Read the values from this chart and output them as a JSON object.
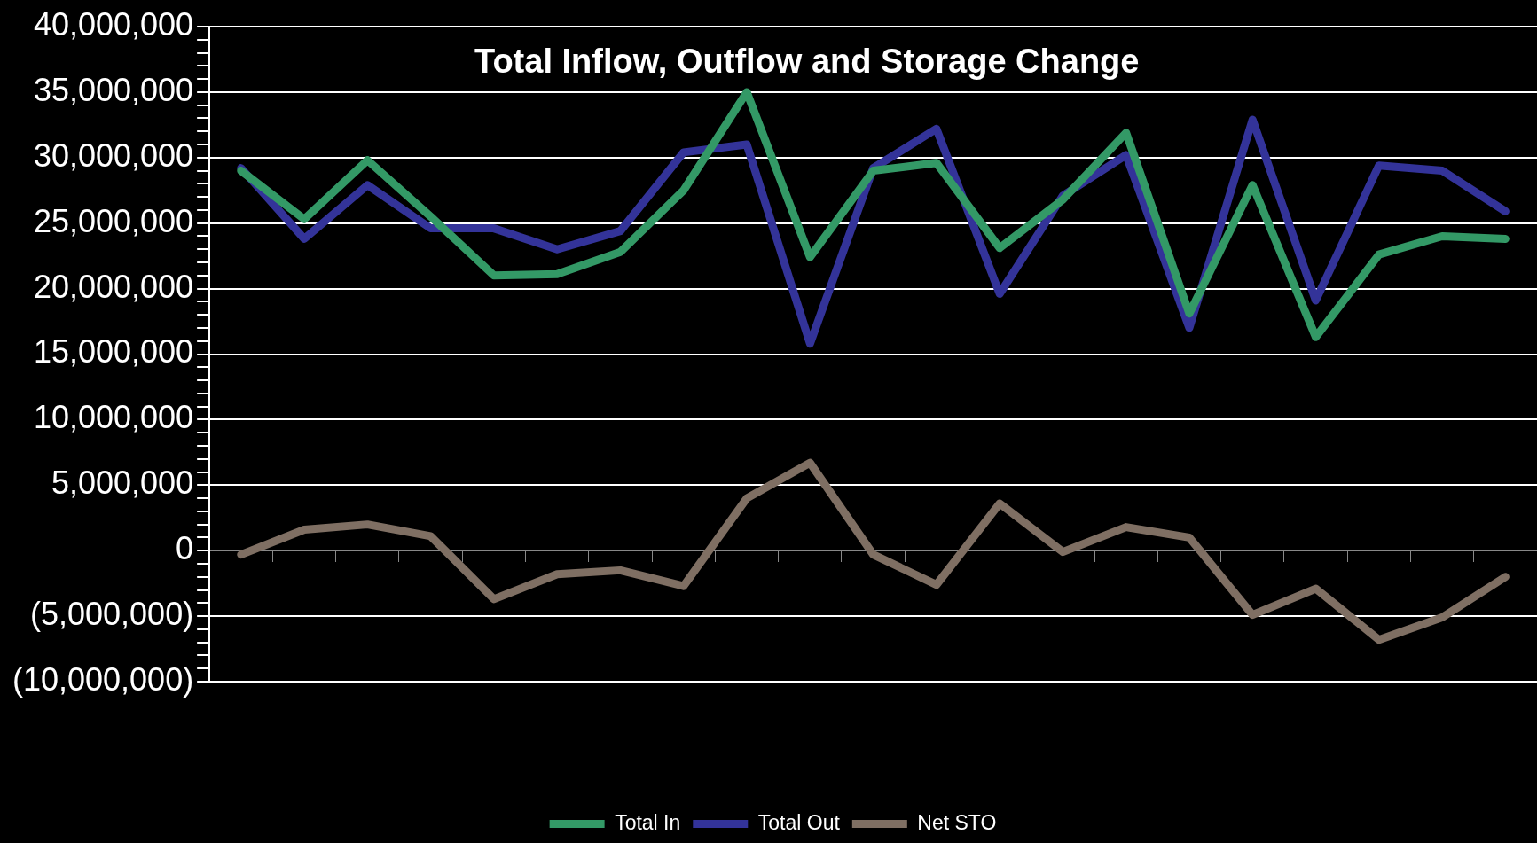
{
  "chart_data": {
    "type": "line",
    "title": "Total Inflow, Outflow and Storage Change",
    "categories": [
      null,
      null,
      null,
      null,
      null,
      null,
      null,
      null,
      null,
      null,
      null,
      null,
      null,
      null,
      null,
      null,
      null,
      null,
      null,
      null,
      null
    ],
    "series": [
      {
        "name": "Total In",
        "color": "#339966",
        "values": [
          29000000,
          25300000,
          29800000,
          25500000,
          21000000,
          21100000,
          22800000,
          27500000,
          35000000,
          22400000,
          29000000,
          29600000,
          23100000,
          26800000,
          31900000,
          18100000,
          27900000,
          16300000,
          22600000,
          24000000,
          23800000
        ]
      },
      {
        "name": "Total Out",
        "color": "#333399",
        "values": [
          29200000,
          23800000,
          27900000,
          24600000,
          24600000,
          23000000,
          24400000,
          30400000,
          31000000,
          15800000,
          29200000,
          32200000,
          19600000,
          27100000,
          30200000,
          17000000,
          32900000,
          19100000,
          29400000,
          29000000,
          25900000
        ]
      },
      {
        "name": "Net STO",
        "color": "#7f6f63",
        "values": [
          -300000,
          1600000,
          2000000,
          1100000,
          -3700000,
          -1800000,
          -1500000,
          -2700000,
          4000000,
          6700000,
          -300000,
          -2600000,
          3600000,
          -100000,
          1800000,
          1000000,
          -4900000,
          -2900000,
          -6800000,
          -5100000,
          -2000000
        ]
      }
    ],
    "ylim": [
      -10000000,
      40000000
    ],
    "yticks": [
      {
        "value": -10000000,
        "label": "(10,000,000)"
      },
      {
        "value": -9000000,
        "label": null
      },
      {
        "value": -8000000,
        "label": null
      },
      {
        "value": -7000000,
        "label": null
      },
      {
        "value": -6000000,
        "label": null
      },
      {
        "value": -5000000,
        "label": "(5,000,000)"
      },
      {
        "value": -4000000,
        "label": null
      },
      {
        "value": -3000000,
        "label": null
      },
      {
        "value": -2000000,
        "label": null
      },
      {
        "value": -1000000,
        "label": null
      },
      {
        "value": 0,
        "label": "0"
      },
      {
        "value": 1000000,
        "label": null
      },
      {
        "value": 2000000,
        "label": null
      },
      {
        "value": 3000000,
        "label": null
      },
      {
        "value": 4000000,
        "label": null
      },
      {
        "value": 5000000,
        "label": "5,000,000"
      },
      {
        "value": 6000000,
        "label": null
      },
      {
        "value": 7000000,
        "label": null
      },
      {
        "value": 8000000,
        "label": null
      },
      {
        "value": 9000000,
        "label": null
      },
      {
        "value": 10000000,
        "label": "10,000,000"
      },
      {
        "value": 11000000,
        "label": null
      },
      {
        "value": 12000000,
        "label": null
      },
      {
        "value": 13000000,
        "label": null
      },
      {
        "value": 14000000,
        "label": null
      },
      {
        "value": 15000000,
        "label": "15,000,000"
      },
      {
        "value": 16000000,
        "label": null
      },
      {
        "value": 17000000,
        "label": null
      },
      {
        "value": 18000000,
        "label": null
      },
      {
        "value": 19000000,
        "label": null
      },
      {
        "value": 20000000,
        "label": "20,000,000"
      },
      {
        "value": 21000000,
        "label": null
      },
      {
        "value": 22000000,
        "label": null
      },
      {
        "value": 23000000,
        "label": null
      },
      {
        "value": 24000000,
        "label": null
      },
      {
        "value": 25000000,
        "label": "25,000,000"
      },
      {
        "value": 26000000,
        "label": null
      },
      {
        "value": 27000000,
        "label": null
      },
      {
        "value": 28000000,
        "label": null
      },
      {
        "value": 29000000,
        "label": null
      },
      {
        "value": 30000000,
        "label": "30,000,000"
      },
      {
        "value": 31000000,
        "label": null
      },
      {
        "value": 32000000,
        "label": null
      },
      {
        "value": 33000000,
        "label": null
      },
      {
        "value": 34000000,
        "label": null
      },
      {
        "value": 35000000,
        "label": "35,000,000"
      },
      {
        "value": 36000000,
        "label": null
      },
      {
        "value": 37000000,
        "label": null
      },
      {
        "value": 38000000,
        "label": null
      },
      {
        "value": 39000000,
        "label": null
      },
      {
        "value": 40000000,
        "label": "40,000,000"
      }
    ],
    "grid": "y",
    "legend": "bottom",
    "marker": "none",
    "line_style": "solid"
  }
}
